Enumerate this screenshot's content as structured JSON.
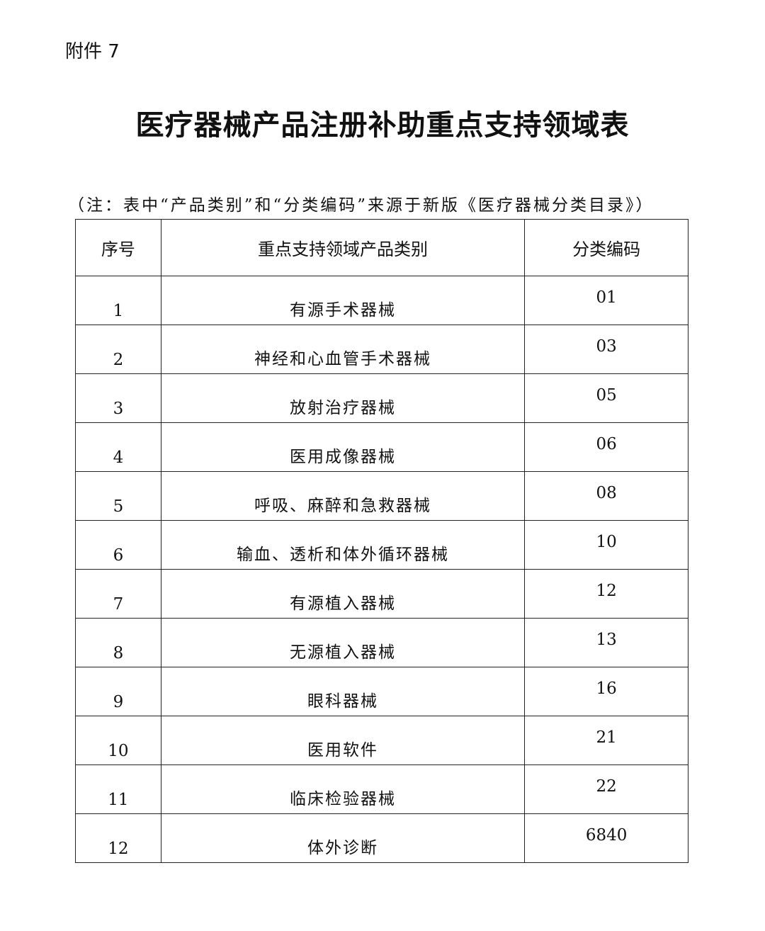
{
  "attachment": "附件 7",
  "title": "医疗器械产品注册补助重点支持领域表",
  "note": "（注：表中“产品类别”和“分类编码”来源于新版《医疗器械分类目录》）",
  "table": {
    "headers": [
      "序号",
      "重点支持领域产品类别",
      "分类编码"
    ],
    "rows": [
      [
        "1",
        "有源手术器械",
        "01"
      ],
      [
        "2",
        "神经和心血管手术器械",
        "03"
      ],
      [
        "3",
        "放射治疗器械",
        "05"
      ],
      [
        "4",
        "医用成像器械",
        "06"
      ],
      [
        "5",
        "呼吸、麻醉和急救器械",
        "08"
      ],
      [
        "6",
        "输血、透析和体外循环器械",
        "10"
      ],
      [
        "7",
        "有源植入器械",
        "12"
      ],
      [
        "8",
        "无源植入器械",
        "13"
      ],
      [
        "9",
        "眼科器械",
        "16"
      ],
      [
        "10",
        "医用软件",
        "21"
      ],
      [
        "11",
        "临床检验器械",
        "22"
      ],
      [
        "12",
        "体外诊断",
        "6840"
      ]
    ]
  }
}
